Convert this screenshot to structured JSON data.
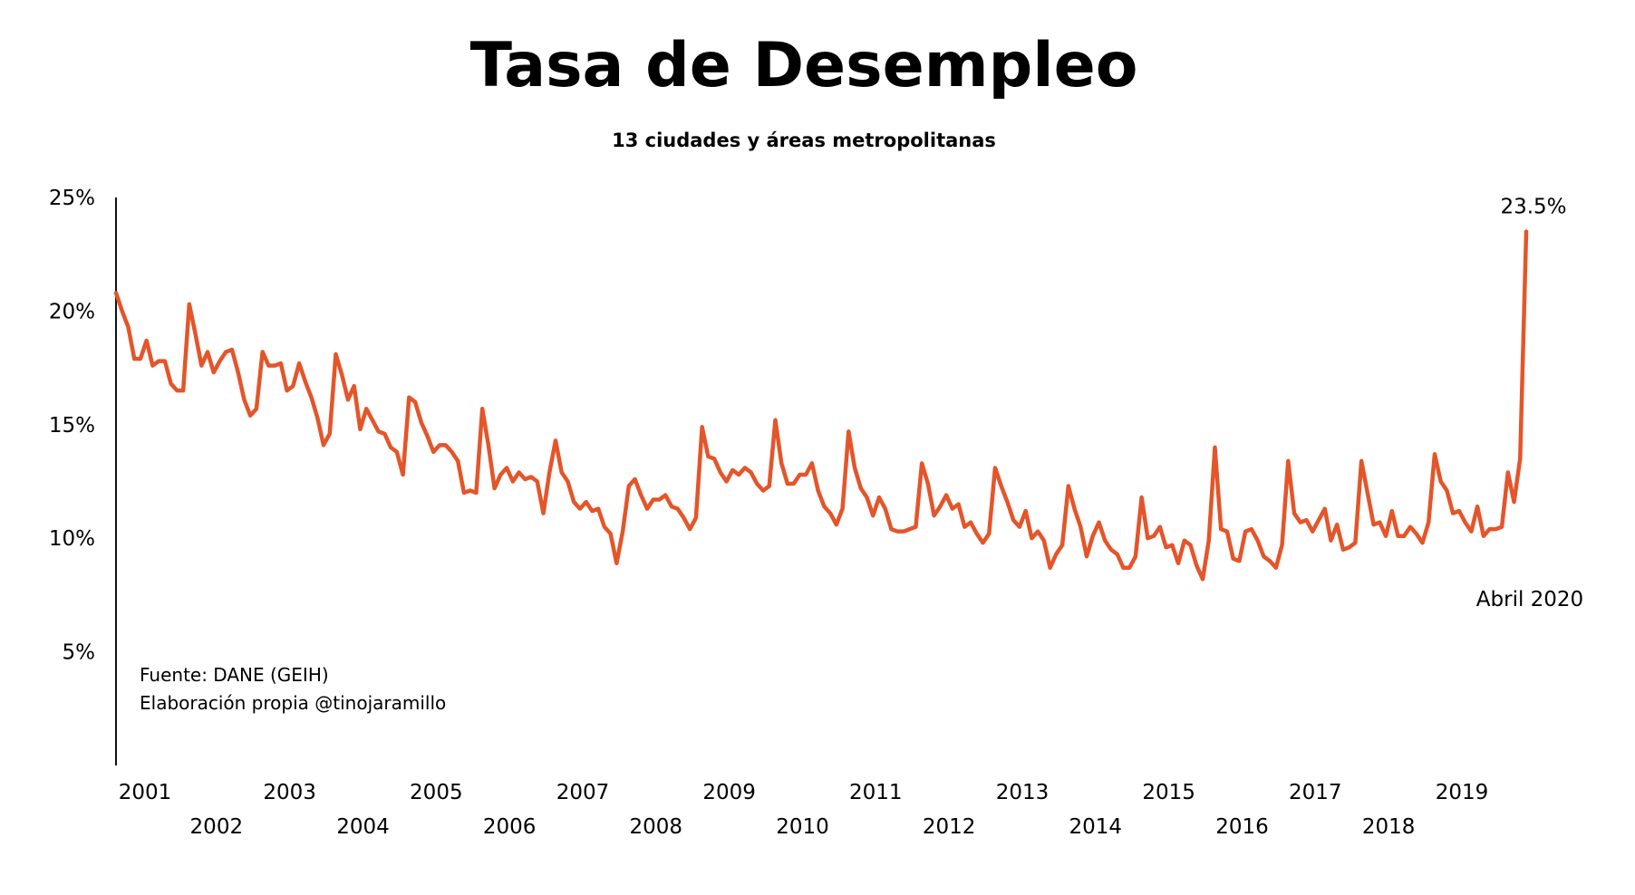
{
  "chart_data": {
    "type": "line",
    "title": "Tasa de Desempleo",
    "subtitle": "13 ciudades y áreas metropolitanas",
    "y_unit": "%",
    "ylim": [
      0,
      25
    ],
    "y_ticks": [
      "25%",
      "20%",
      "15%",
      "10%",
      "5%"
    ],
    "y_tick_values": [
      25,
      20,
      15,
      10,
      5
    ],
    "x_range": [
      "2001-01",
      "2020-04"
    ],
    "x_tick_labels": [
      "2001",
      "2002",
      "2003",
      "2004",
      "2005",
      "2006",
      "2007",
      "2008",
      "2009",
      "2010",
      "2011",
      "2012",
      "2013",
      "2014",
      "2015",
      "2016",
      "2017",
      "2018",
      "2019"
    ],
    "grid": false,
    "legend": "none",
    "series": [
      {
        "color": "#E4552A",
        "x_start": "2001-01",
        "frequency": "monthly",
        "values": [
          20.8,
          20.0,
          19.3,
          17.9,
          17.9,
          18.7,
          17.6,
          17.8,
          17.8,
          16.8,
          16.5,
          16.5,
          20.3,
          19.0,
          17.6,
          18.2,
          17.3,
          17.8,
          18.2,
          18.3,
          17.3,
          16.1,
          15.4,
          15.7,
          18.2,
          17.6,
          17.6,
          17.7,
          16.5,
          16.7,
          17.7,
          16.9,
          16.2,
          15.3,
          14.1,
          14.6,
          18.1,
          17.2,
          16.1,
          16.7,
          14.8,
          15.7,
          15.2,
          14.7,
          14.6,
          14.0,
          13.8,
          12.8,
          16.2,
          16.0,
          15.1,
          14.5,
          13.8,
          14.1,
          14.1,
          13.8,
          13.4,
          12.0,
          12.1,
          12.0,
          15.7,
          14.1,
          12.2,
          12.8,
          13.1,
          12.5,
          12.9,
          12.6,
          12.7,
          12.5,
          11.1,
          12.9,
          14.3,
          12.9,
          12.5,
          11.6,
          11.3,
          11.6,
          11.2,
          11.3,
          10.5,
          10.2,
          8.9,
          10.3,
          12.3,
          12.6,
          11.9,
          11.3,
          11.7,
          11.7,
          11.9,
          11.4,
          11.3,
          10.9,
          10.4,
          10.9,
          14.9,
          13.6,
          13.5,
          12.9,
          12.5,
          13.0,
          12.8,
          13.1,
          12.9,
          12.4,
          12.1,
          12.3,
          15.2,
          13.3,
          12.4,
          12.4,
          12.8,
          12.8,
          13.3,
          12.1,
          11.4,
          11.1,
          10.6,
          11.3,
          14.7,
          13.1,
          12.2,
          11.8,
          11.0,
          11.8,
          11.3,
          10.4,
          10.3,
          10.3,
          10.4,
          10.5,
          13.3,
          12.4,
          11.0,
          11.4,
          11.9,
          11.3,
          11.5,
          10.5,
          10.7,
          10.2,
          9.8,
          10.2,
          13.1,
          12.3,
          11.6,
          10.8,
          10.5,
          11.2,
          10.0,
          10.3,
          9.9,
          8.7,
          9.3,
          9.7,
          12.3,
          11.3,
          10.5,
          9.2,
          10.1,
          10.7,
          9.9,
          9.5,
          9.3,
          8.7,
          8.7,
          9.2,
          11.8,
          10.0,
          10.1,
          10.5,
          9.6,
          9.7,
          8.9,
          9.9,
          9.7,
          8.8,
          8.2,
          9.9,
          14.0,
          10.4,
          10.3,
          9.1,
          9.0,
          10.3,
          10.4,
          9.9,
          9.2,
          9.0,
          8.7,
          9.7,
          13.4,
          11.1,
          10.7,
          10.8,
          10.3,
          10.8,
          11.3,
          9.9,
          10.6,
          9.5,
          9.6,
          9.8,
          13.4,
          12.0,
          10.6,
          10.7,
          10.1,
          11.2,
          10.1,
          10.1,
          10.5,
          10.2,
          9.8,
          10.7,
          13.7,
          12.5,
          12.1,
          11.1,
          11.2,
          10.7,
          10.3,
          11.4,
          10.1,
          10.4,
          10.4,
          10.5,
          12.9,
          11.6,
          13.5,
          23.5
        ]
      }
    ],
    "annotations": [
      {
        "text": "23.5%",
        "x": "2020-04",
        "y": 23.5
      },
      {
        "text": "Abril 2020",
        "x": "2020-04"
      }
    ],
    "source_lines": [
      "Fuente: DANE (GEIH)",
      "Elaboración propia @tinojaramillo"
    ]
  }
}
